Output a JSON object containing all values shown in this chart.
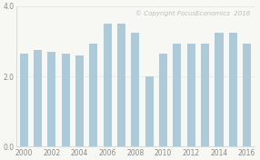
{
  "years": [
    2000,
    2001,
    2002,
    2003,
    2004,
    2005,
    2006,
    2007,
    2008,
    2009,
    2010,
    2011,
    2012,
    2013,
    2014,
    2015,
    2016
  ],
  "values": [
    2.65,
    2.75,
    2.7,
    2.65,
    2.6,
    2.95,
    3.5,
    3.5,
    3.25,
    2.0,
    2.65,
    2.95,
    2.95,
    2.95,
    3.25,
    3.25,
    2.95
  ],
  "bar_color": "#aec9d8",
  "bar_edge_color": "#aec9d8",
  "background_color": "#f7f7f4",
  "plot_bg_color": "#f7f7f4",
  "ylim": [
    0.0,
    4.0
  ],
  "yticks": [
    0.0,
    2.0,
    4.0
  ],
  "grid_color": "#e8e8e8",
  "spine_color": "#cccccc",
  "copyright_text": "© Copyright FocusEconomics  2016",
  "copyright_color": "#bbbbbb",
  "copyright_fontsize": 5.0,
  "tick_fontsize": 5.5,
  "tick_color": "#888888",
  "bar_width": 0.6
}
